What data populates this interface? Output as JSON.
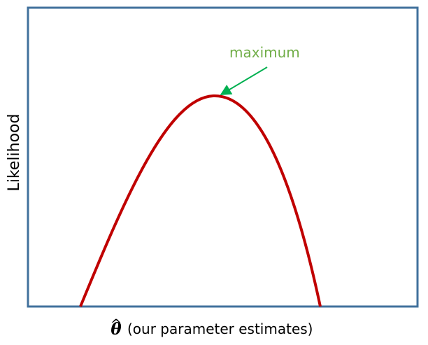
{
  "diagram": {
    "ylabel": "Likelihood",
    "xlabel_symbol": "θ",
    "xlabel_hat": "^",
    "xlabel_text": "(our parameter estimates)",
    "annotation": "maximum"
  },
  "colors": {
    "frame": "#41719c",
    "curve": "#c00000",
    "annotation": "#70ad47",
    "arrow": "#00b050"
  }
}
